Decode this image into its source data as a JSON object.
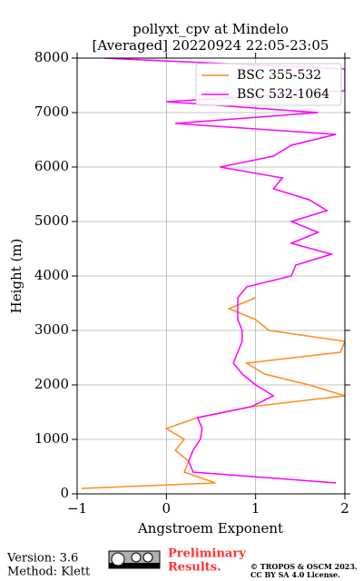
{
  "chart_data": {
    "type": "line",
    "orientation": "profile",
    "title": "pollyxt_cpv at Mindelo",
    "subtitle": "[Averaged] 20220924 22:05-23:05",
    "x_label": "Angstroem Exponent",
    "y_label": "Height (m)",
    "y": [
      100,
      200,
      400,
      600,
      800,
      1000,
      1200,
      1400,
      1600,
      1800,
      2000,
      2200,
      2400,
      2600,
      2800,
      3000,
      3200,
      3400,
      3600,
      3800,
      4000,
      4200,
      4400,
      4600,
      4800,
      5000,
      5200,
      5400,
      5600,
      5800,
      6000,
      6200,
      6400,
      6600,
      6800,
      7000,
      7200,
      7400,
      7600,
      7800,
      8000
    ],
    "series": [
      {
        "name": "BSC 355-532",
        "color": "#ff8c1a",
        "values": [
          -0.95,
          0.55,
          0.2,
          0.25,
          0.1,
          0.2,
          0.0,
          0.35,
          0.95,
          2.0,
          1.6,
          1.1,
          0.9,
          1.95,
          2.0,
          1.15,
          1.0,
          0.7,
          1.0,
          null,
          null,
          null,
          null,
          null,
          null,
          null,
          null,
          null,
          null,
          null,
          null,
          null,
          null,
          null,
          null,
          null,
          null,
          null,
          null,
          null,
          null
        ]
      },
      {
        "name": "BSC 532-1064",
        "color": "#ff00ff",
        "values": [
          null,
          1.9,
          0.3,
          0.25,
          0.3,
          0.38,
          0.4,
          0.35,
          0.95,
          1.2,
          1.0,
          0.85,
          0.75,
          0.8,
          0.85,
          0.85,
          0.8,
          0.8,
          0.8,
          0.9,
          1.4,
          1.45,
          1.85,
          1.4,
          1.7,
          1.4,
          1.8,
          1.6,
          1.2,
          1.3,
          0.6,
          1.2,
          1.4,
          1.9,
          0.1,
          1.7,
          0.0,
          2.0,
          2.0,
          2.0,
          -0.7
        ]
      }
    ],
    "xlim": [
      -1,
      2
    ],
    "xticks": [
      {
        "value": -1,
        "label": "−1"
      },
      0,
      1,
      2
    ],
    "ylim": [
      0,
      8000
    ],
    "yticks": [
      0,
      1000,
      2000,
      3000,
      4000,
      5000,
      6000,
      7000,
      8000
    ],
    "grid": true,
    "legend": "upper right"
  },
  "footer": {
    "version": "Version: 3.6",
    "method": "Method: Klett",
    "notice_1": "Preliminary",
    "notice_2": "Results.",
    "copyright_1": "© TROPOS & OSCM 2023.",
    "copyright_2": "CC BY SA 4.0 License."
  }
}
